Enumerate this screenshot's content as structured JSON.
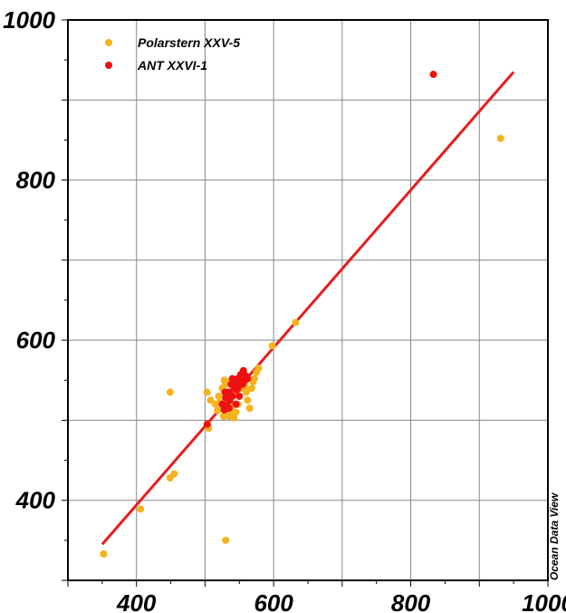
{
  "watermark": "Ocean Data View",
  "chart_data": {
    "type": "scatter",
    "xlim": [
      300,
      1000
    ],
    "ylim": [
      300,
      1000
    ],
    "x_ticks": [
      400,
      600,
      800,
      1000
    ],
    "y_ticks": [
      400,
      600,
      800,
      1000
    ],
    "grid": true,
    "legend_position": "top-left",
    "series": [
      {
        "name": "Polarstern XXV-5",
        "color": "#f5b31c",
        "points": [
          [
            352,
            333
          ],
          [
            406,
            389
          ],
          [
            449,
            428
          ],
          [
            455,
            433
          ],
          [
            449,
            535
          ],
          [
            503,
            535
          ],
          [
            508,
            525
          ],
          [
            505,
            490
          ],
          [
            504,
            495
          ],
          [
            530,
            350
          ],
          [
            515,
            520
          ],
          [
            520,
            530
          ],
          [
            525,
            540
          ],
          [
            528,
            550
          ],
          [
            530,
            545
          ],
          [
            532,
            535
          ],
          [
            535,
            525
          ],
          [
            537,
            515
          ],
          [
            540,
            508
          ],
          [
            542,
            503
          ],
          [
            545,
            510
          ],
          [
            548,
            520
          ],
          [
            550,
            530
          ],
          [
            552,
            540
          ],
          [
            555,
            550
          ],
          [
            558,
            545
          ],
          [
            560,
            535
          ],
          [
            562,
            525
          ],
          [
            565,
            515
          ],
          [
            568,
            540
          ],
          [
            570,
            548
          ],
          [
            572,
            552
          ],
          [
            575,
            560
          ],
          [
            578,
            565
          ],
          [
            525,
            515
          ],
          [
            527,
            505
          ],
          [
            530,
            512
          ],
          [
            535,
            505
          ],
          [
            538,
            520
          ],
          [
            540,
            530
          ],
          [
            543,
            538
          ],
          [
            546,
            545
          ],
          [
            550,
            552
          ],
          [
            553,
            558
          ],
          [
            556,
            548
          ],
          [
            559,
            538
          ],
          [
            522,
            522
          ],
          [
            518,
            512
          ],
          [
            533,
            548
          ],
          [
            545,
            535
          ],
          [
            598,
            593
          ],
          [
            632,
            622
          ],
          [
            931,
            852
          ]
        ]
      },
      {
        "name": "ANT XXVI-1",
        "color": "#ee1111",
        "points": [
          [
            503,
            495
          ],
          [
            525,
            520
          ],
          [
            528,
            513
          ],
          [
            530,
            528
          ],
          [
            532,
            518
          ],
          [
            534,
            535
          ],
          [
            536,
            525
          ],
          [
            538,
            545
          ],
          [
            540,
            530
          ],
          [
            542,
            540
          ],
          [
            544,
            548
          ],
          [
            546,
            538
          ],
          [
            548,
            552
          ],
          [
            550,
            545
          ],
          [
            552,
            557
          ],
          [
            554,
            548
          ],
          [
            556,
            562
          ],
          [
            558,
            550
          ],
          [
            560,
            555
          ],
          [
            545,
            520
          ],
          [
            550,
            530
          ],
          [
            535,
            515
          ],
          [
            540,
            552
          ],
          [
            548,
            540
          ],
          [
            555,
            545
          ],
          [
            562,
            552
          ],
          [
            529,
            535
          ],
          [
            537,
            532
          ],
          [
            833,
            932
          ]
        ]
      }
    ],
    "fit_line": {
      "color": "#e41e1e",
      "x": [
        350,
        950
      ],
      "y": [
        345,
        935
      ]
    }
  }
}
